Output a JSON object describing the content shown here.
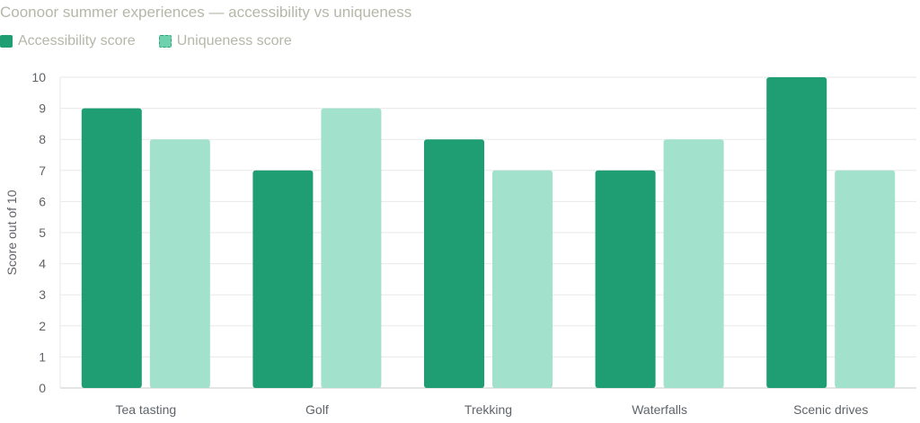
{
  "header": {
    "title": "Coonoor summer experiences — accessibility vs uniqueness"
  },
  "legend": {
    "items": [
      {
        "label": "Accessibility score",
        "color": "#1f9e73",
        "style": "solid"
      },
      {
        "label": "Uniqueness score",
        "color": "#6fd2ae",
        "style": "dashed"
      }
    ]
  },
  "chart_data": {
    "type": "bar",
    "title": "Coonoor summer experiences — accessibility vs uniqueness",
    "xlabel": "",
    "ylabel": "Score out of 10",
    "categories": [
      "Tea tasting",
      "Golf",
      "Trekking",
      "Waterfalls",
      "Scenic drives"
    ],
    "series": [
      {
        "name": "Accessibility score",
        "values": [
          9,
          7,
          8,
          7,
          10
        ],
        "color": "#1f9e73"
      },
      {
        "name": "Uniqueness score",
        "values": [
          8,
          9,
          7,
          8,
          7
        ],
        "color": "#a2e2cc"
      }
    ],
    "ylim": [
      0,
      10
    ],
    "yticks": [
      0,
      1,
      2,
      3,
      4,
      5,
      6,
      7,
      8,
      9,
      10
    ],
    "grid": true,
    "legend_position": "top-left"
  }
}
